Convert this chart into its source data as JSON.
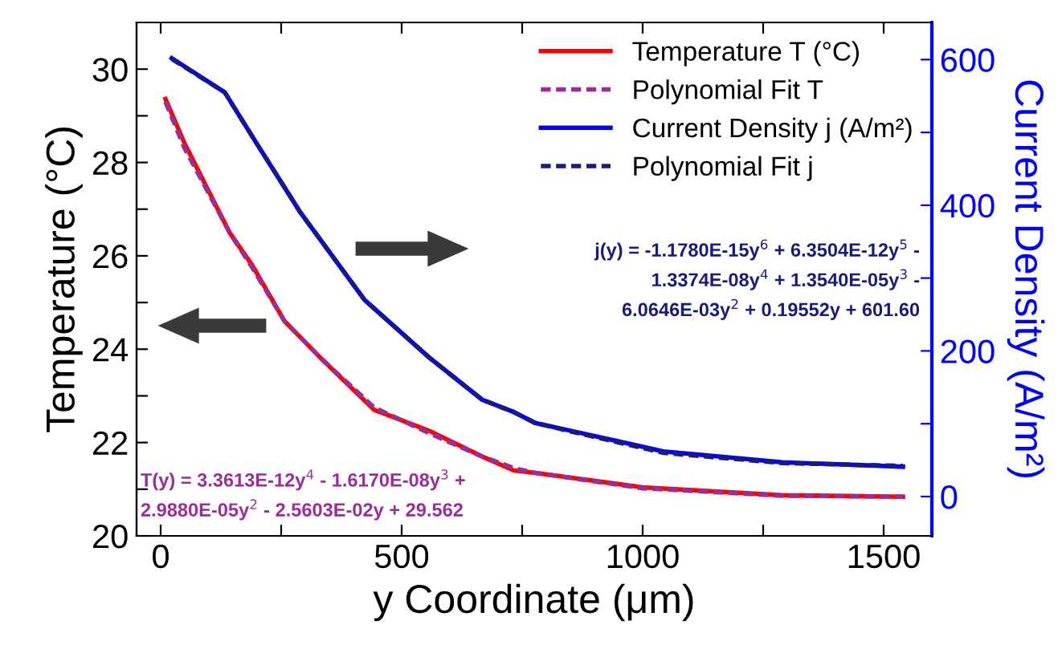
{
  "chart_data": {
    "type": "line",
    "xlabel": "y Coordinate (μm)",
    "ylabel": "Temperature (°C)",
    "y2label": "Current Density (A/m²)",
    "xlim": [
      -50,
      1600
    ],
    "xticks": [
      0,
      {
        "value": 250,
        "label": null
      },
      500,
      {
        "value": 750,
        "label": null
      },
      1000,
      {
        "value": 1250,
        "label": null
      },
      1500
    ],
    "ylim": [
      20,
      31
    ],
    "yticks": [
      20,
      {
        "value": 21,
        "label": null
      },
      22,
      {
        "value": 23,
        "label": null
      },
      24,
      {
        "value": 25,
        "label": null
      },
      26,
      {
        "value": 27,
        "label": null
      },
      28,
      {
        "value": 29,
        "label": null
      },
      30
    ],
    "y2lim": [
      -54,
      651
    ],
    "y2ticks": [
      0,
      {
        "value": 100,
        "label": null
      },
      200,
      {
        "value": 300,
        "label": null
      },
      400,
      {
        "value": 500,
        "label": null
      },
      600
    ],
    "legend": "top right",
    "grid": false,
    "series": [
      {
        "name": "Temperature T (°C)",
        "color": "#ff0000",
        "line_style": "solid",
        "x": [
          10,
          50,
          143,
          190,
          257,
          333,
          443,
          557,
          667,
          733,
          777,
          1000,
          1290,
          1540
        ],
        "values": [
          29.36,
          28.4,
          26.5,
          25.8,
          24.6,
          23.8,
          22.7,
          22.25,
          21.7,
          21.4,
          21.35,
          21.04,
          20.87,
          20.84
        ]
      },
      {
        "name": "Polynomial Fit T",
        "color": "#9b2d9b",
        "line_style": "dashed",
        "x": [
          10,
          50,
          143,
          190,
          257,
          333,
          443,
          557,
          667,
          733,
          777,
          1000,
          1290,
          1540
        ],
        "values": [
          29.3,
          28.3,
          26.5,
          25.75,
          24.6,
          23.8,
          22.75,
          22.2,
          21.7,
          21.45,
          21.35,
          21.02,
          20.86,
          20.84
        ]
      },
      {
        "name": "Current Density j (A/m²)",
        "color": "#0000ff",
        "line_style": "solid",
        "axis": "y2",
        "x": [
          23,
          133,
          200,
          290,
          423,
          557,
          667,
          733,
          777,
          867,
          1043,
          1290,
          1540
        ],
        "values": [
          602,
          555,
          484,
          390,
          270,
          191,
          133,
          116,
          101,
          88,
          62,
          47,
          41
        ]
      },
      {
        "name": "Polynomial Fit j",
        "color": "#1a1a80",
        "line_style": "dashed",
        "axis": "y2",
        "x": [
          23,
          133,
          200,
          290,
          423,
          557,
          667,
          733,
          777,
          867,
          1043,
          1290,
          1540
        ],
        "values": [
          601,
          555,
          484,
          390,
          270,
          191,
          133,
          116,
          101,
          87,
          60,
          46,
          42
        ]
      }
    ],
    "annotations": [
      "T(y) = 3.3613E-12y$^{4}$ - 1.6170E-08y$^{3}$ +\n2.9880E-05y$^{2}$ - 2.5603E-02y + 29.562",
      "j(y) = -1.1780E-15y$^{6}$ + 6.3504E-12y$^{5}$ -\n1.3374E-08y$^{4}$ + 1.3540E-05y$^{3}$ -\n6.0646E-03y$^{2}$ + 0.19552y + 601.60"
    ]
  }
}
